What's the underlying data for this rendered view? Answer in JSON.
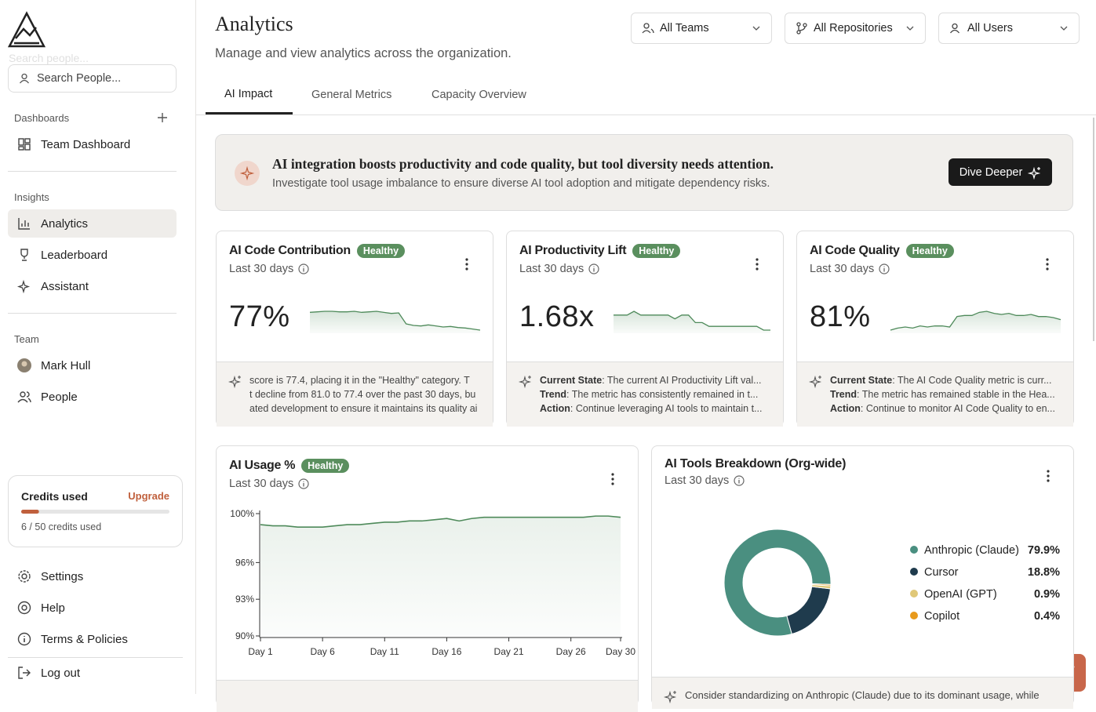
{
  "sidebar": {
    "search_ghost": "Search people...",
    "search_placeholder": "Search People...",
    "dashboards_heading": "Dashboards",
    "dashboards": [
      "Team Dashboard"
    ],
    "insights_heading": "Insights",
    "insights": [
      "Analytics",
      "Leaderboard",
      "Assistant"
    ],
    "team_heading": "Team",
    "team": [
      "Mark Hull",
      "People"
    ],
    "credits": {
      "title": "Credits used",
      "upgrade": "Upgrade",
      "used": 6,
      "total": 50,
      "label": "6 / 50 credits used"
    },
    "footer": [
      "Settings",
      "Help",
      "Terms & Policies",
      "Log out"
    ]
  },
  "header": {
    "title": "Analytics",
    "subtitle": "Manage and view analytics across the organization.",
    "filters": [
      "All Teams",
      "All Repositories",
      "All Users"
    ]
  },
  "tabs": [
    "AI Impact",
    "General Metrics",
    "Capacity Overview"
  ],
  "insight": {
    "headline": "AI integration boosts productivity and code quality, but tool diversity needs attention.",
    "detail": "Investigate tool usage imbalance to ensure diverse AI tool adoption and mitigate dependency risks.",
    "button": "Dive Deeper"
  },
  "metric_cards": [
    {
      "title": "AI Code Contribution",
      "status": "Healthy",
      "period": "Last 30 days",
      "value": "77%",
      "trend": [
        80.8,
        80.9,
        81.0,
        81.0,
        80.9,
        80.9,
        81.0,
        80.8,
        80.9,
        81.0,
        80.8,
        80.6,
        80.7,
        78.6,
        78.3,
        78.2,
        78.4,
        78.2,
        78.0,
        78.1,
        77.9,
        77.8,
        77.6,
        77.4
      ],
      "summary": [
        {
          "text": "score is 77.4, placing it in the \"Healthy\" category. T"
        },
        {
          "text": "t decline from 81.0 to 77.4 over the past 30 days, bu"
        },
        {
          "text": "ated development to ensure it maintains its quality ai"
        }
      ]
    },
    {
      "title": "AI Productivity Lift",
      "status": "Healthy",
      "period": "Last 30 days",
      "value": "1.68x",
      "trend": [
        1.72,
        1.72,
        1.72,
        1.73,
        1.72,
        1.72,
        1.72,
        1.72,
        1.72,
        1.71,
        1.72,
        1.72,
        1.7,
        1.7,
        1.69,
        1.69,
        1.69,
        1.69,
        1.69,
        1.69,
        1.69,
        1.69,
        1.68,
        1.68
      ],
      "summary": [
        {
          "label": "Current State",
          "text": ": The current AI Productivity Lift val..."
        },
        {
          "label": "Trend",
          "text": ": The metric has consistently remained in t..."
        },
        {
          "label": "Action",
          "text": ": Continue leveraging AI tools to maintain t..."
        }
      ]
    },
    {
      "title": "AI Code Quality",
      "status": "Healthy",
      "period": "Last 30 days",
      "value": "81%",
      "trend": [
        79.6,
        79.8,
        79.9,
        79.8,
        80.0,
        79.9,
        80.0,
        80.0,
        79.9,
        80.9,
        81.0,
        81.0,
        81.3,
        81.4,
        81.2,
        81.1,
        81.2,
        81.0,
        81.0,
        81.1,
        80.9,
        80.9,
        80.8,
        80.6
      ],
      "summary": [
        {
          "label": "Current State",
          "text": ": The AI Code Quality metric is curr..."
        },
        {
          "label": "Trend",
          "text": ": The metric has remained stable in the Hea..."
        },
        {
          "label": "Action",
          "text": ": Continue to monitor AI Code Quality to en..."
        }
      ]
    }
  ],
  "chart_data": [
    {
      "type": "line",
      "title": "AI Usage %",
      "status": "Healthy",
      "period": "Last 30 days",
      "categories": [
        "Day 1",
        null,
        null,
        null,
        null,
        "Day 6",
        null,
        null,
        null,
        null,
        "Day 11",
        null,
        null,
        null,
        null,
        "Day 16",
        null,
        null,
        null,
        null,
        "Day 21",
        null,
        null,
        null,
        null,
        "Day 26",
        null,
        null,
        null,
        "Day 30"
      ],
      "values": [
        99.1,
        99.0,
        99.0,
        98.9,
        98.9,
        98.9,
        99.0,
        99.1,
        99.1,
        99.2,
        99.3,
        99.3,
        99.4,
        99.4,
        99.5,
        99.6,
        99.4,
        99.6,
        99.7,
        99.7,
        99.7,
        99.7,
        99.7,
        99.7,
        99.7,
        99.7,
        99.7,
        99.8,
        99.8,
        99.7
      ],
      "color": "#4e8a5a",
      "ylim": [
        90,
        100
      ],
      "yticks": [
        {
          "value": 100,
          "label": "100%"
        },
        {
          "value": 96,
          "label": "96%"
        },
        {
          "value": 93,
          "label": "93%"
        },
        {
          "value": 90,
          "label": "90%"
        }
      ]
    },
    {
      "type": "pie",
      "title": "AI Tools Breakdown (Org-wide)",
      "period": "Last 30 days",
      "categories": [
        "Anthropic (Claude)",
        "Cursor",
        "OpenAI (GPT)",
        "Copilot"
      ],
      "values": [
        79.9,
        18.8,
        0.9,
        0.4
      ],
      "value_labels": [
        "79.9%",
        "18.8%",
        "0.9%",
        "0.4%"
      ],
      "colors": [
        "#4a8f80",
        "#1f3b4d",
        "#e0c878",
        "#e89a1c"
      ],
      "note": "Consider standardizing on Anthropic (Claude) due to its dominant usage, while"
    }
  ]
}
